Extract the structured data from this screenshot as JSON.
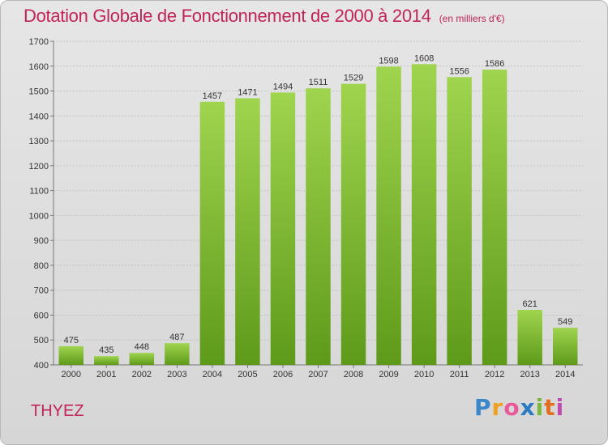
{
  "title": "Dotation Globale de Fonctionnement de 2000 à 2014",
  "unit": "(en milliers d'€)",
  "commune": "THYEZ",
  "logo": {
    "text": "Proxiti"
  },
  "colors": {
    "bar_top": "#9fd44e",
    "bar_bottom": "#5e9a1a",
    "title": "#c0245a"
  },
  "chart_data": {
    "type": "bar",
    "categories": [
      "2000",
      "2001",
      "2002",
      "2003",
      "2004",
      "2005",
      "2006",
      "2007",
      "2008",
      "2009",
      "2010",
      "2011",
      "2012",
      "2013",
      "2014"
    ],
    "values": [
      475,
      435,
      448,
      487,
      1457,
      1471,
      1494,
      1511,
      1529,
      1598,
      1608,
      1556,
      1586,
      621,
      549
    ],
    "ylim": [
      400,
      1700
    ],
    "yticks": [
      400,
      500,
      600,
      700,
      800,
      900,
      1000,
      1100,
      1200,
      1300,
      1400,
      1500,
      1600,
      1700
    ],
    "grid": true,
    "title": "Dotation Globale de Fonctionnement de 2000 à 2014",
    "xlabel": "",
    "ylabel": ""
  }
}
